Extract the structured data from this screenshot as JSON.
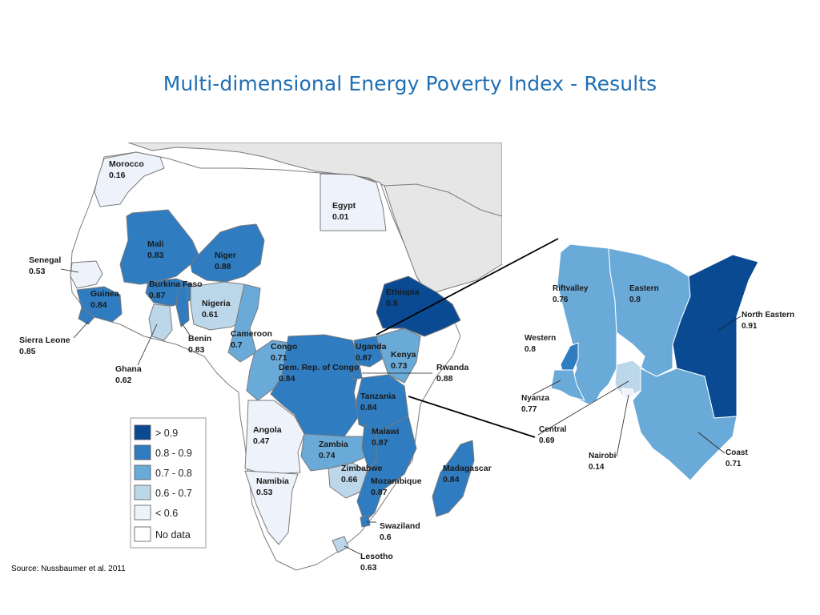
{
  "title": "Multi-dimensional Energy Poverty Index - Results",
  "source": "Source: Nussbaumer et al. 2011",
  "colors": {
    "gt_0_9": "#0a4a92",
    "r_0_8_0_9": "#2f7cc0",
    "r_0_7_0_8": "#6aaad8",
    "r_0_6_0_7": "#bdd7ea",
    "lt_0_6": "#eef3fb",
    "no_data": "#ffffff",
    "non_africa": "#e6e6e6",
    "border": "#7a7a7a"
  },
  "legend": [
    {
      "label": "> 0.9",
      "color": "#0a4a92"
    },
    {
      "label": "0.8 - 0.9",
      "color": "#2f7cc0"
    },
    {
      "label": "0.7 - 0.8",
      "color": "#6aaad8"
    },
    {
      "label": "0.6 - 0.7",
      "color": "#bdd7ea"
    },
    {
      "label": "< 0.6",
      "color": "#eef3fb"
    },
    {
      "label": "No data",
      "color": "#ffffff"
    }
  ],
  "africa": [
    {
      "name": "Morocco",
      "value": "0.16"
    },
    {
      "name": "Egypt",
      "value": "0.01"
    },
    {
      "name": "Senegal",
      "value": "0.53"
    },
    {
      "name": "Mali",
      "value": "0.83"
    },
    {
      "name": "Niger",
      "value": "0.88"
    },
    {
      "name": "Guinea",
      "value": "0.84"
    },
    {
      "name": "Burkina Faso",
      "value": "0.87"
    },
    {
      "name": "Nigeria",
      "value": "0.61"
    },
    {
      "name": "Ethiopia",
      "value": "0.9"
    },
    {
      "name": "Sierra Leone",
      "value": "0.85"
    },
    {
      "name": "Benin",
      "value": "0.83"
    },
    {
      "name": "Cameroon",
      "value": "0.7"
    },
    {
      "name": "Congo",
      "value": "0.71"
    },
    {
      "name": "Uganda",
      "value": "0.87"
    },
    {
      "name": "Kenya",
      "value": "0.73"
    },
    {
      "name": "Dem. Rep. of Congo",
      "value": "0.84"
    },
    {
      "name": "Rwanda",
      "value": "0.88"
    },
    {
      "name": "Ghana",
      "value": "0.62"
    },
    {
      "name": "Tanzania",
      "value": "0.84"
    },
    {
      "name": "Angola",
      "value": "0.47"
    },
    {
      "name": "Malawi",
      "value": "0.87"
    },
    {
      "name": "Zambia",
      "value": "0.74"
    },
    {
      "name": "Zimbabwe",
      "value": "0.66"
    },
    {
      "name": "Madagascar",
      "value": "0.84"
    },
    {
      "name": "Namibia",
      "value": "0.53"
    },
    {
      "name": "Mozambique",
      "value": "0.87"
    },
    {
      "name": "Swaziland",
      "value": "0.6"
    },
    {
      "name": "Lesotho",
      "value": "0.63"
    }
  ],
  "kenya": [
    {
      "name": "Riftvalley",
      "value": "0.76"
    },
    {
      "name": "Eastern",
      "value": "0.8"
    },
    {
      "name": "North Eastern",
      "value": "0.91"
    },
    {
      "name": "Western",
      "value": "0.8"
    },
    {
      "name": "Nyanza",
      "value": "0.77"
    },
    {
      "name": "Central",
      "value": "0.69"
    },
    {
      "name": "Nairobi",
      "value": "0.14"
    },
    {
      "name": "Coast",
      "value": "0.71"
    }
  ]
}
